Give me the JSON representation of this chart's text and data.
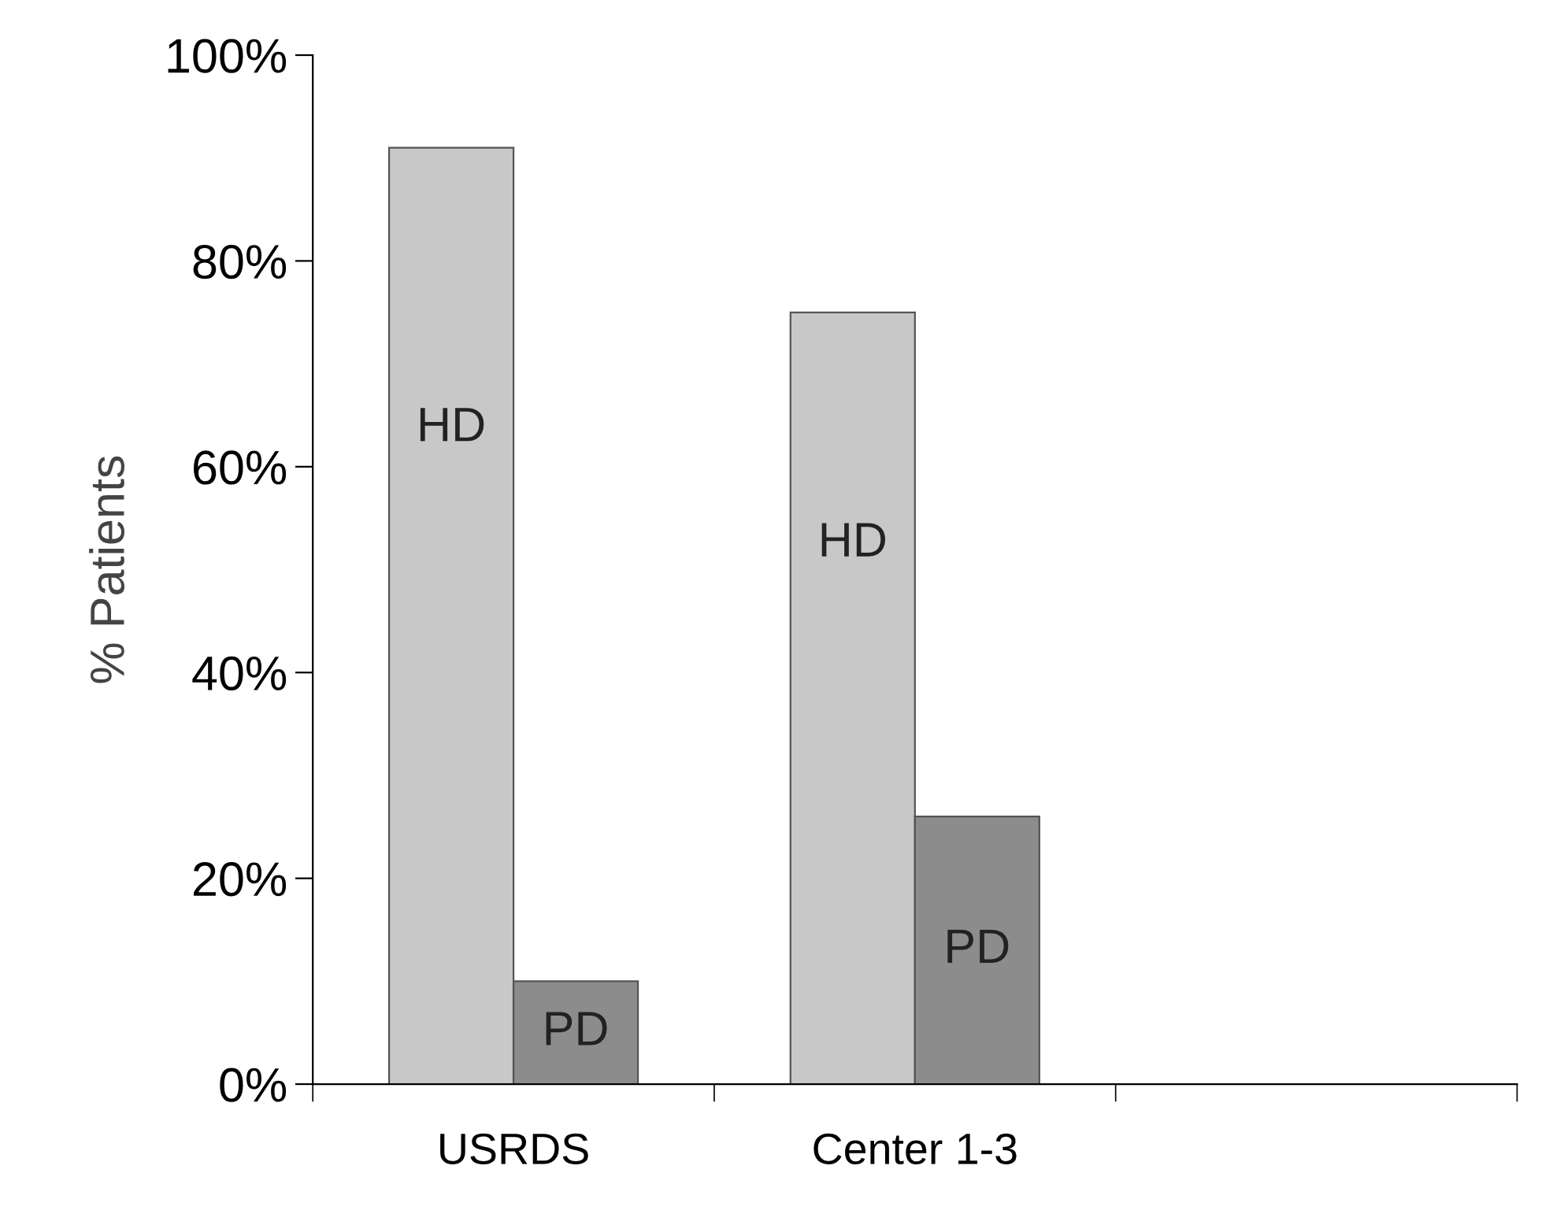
{
  "chart_data": {
    "type": "bar",
    "ylabel": "% Patients",
    "categories": [
      "USRDS",
      "Center 1-3",
      null
    ],
    "series": [
      {
        "name": "HD",
        "color": "#c8c8c8",
        "values": [
          91,
          75,
          null
        ]
      },
      {
        "name": "PD",
        "color": "#8c8c8c",
        "values": [
          10,
          26,
          null
        ]
      }
    ],
    "ylim": [
      0,
      100
    ],
    "yticks": [
      {
        "value": 0,
        "label": "0%"
      },
      {
        "value": 20,
        "label": "20%"
      },
      {
        "value": 40,
        "label": "40%"
      },
      {
        "value": 60,
        "label": "60%"
      },
      {
        "value": 80,
        "label": "80%"
      },
      {
        "value": 100,
        "label": "100%"
      }
    ],
    "grid": false,
    "legend": false
  }
}
